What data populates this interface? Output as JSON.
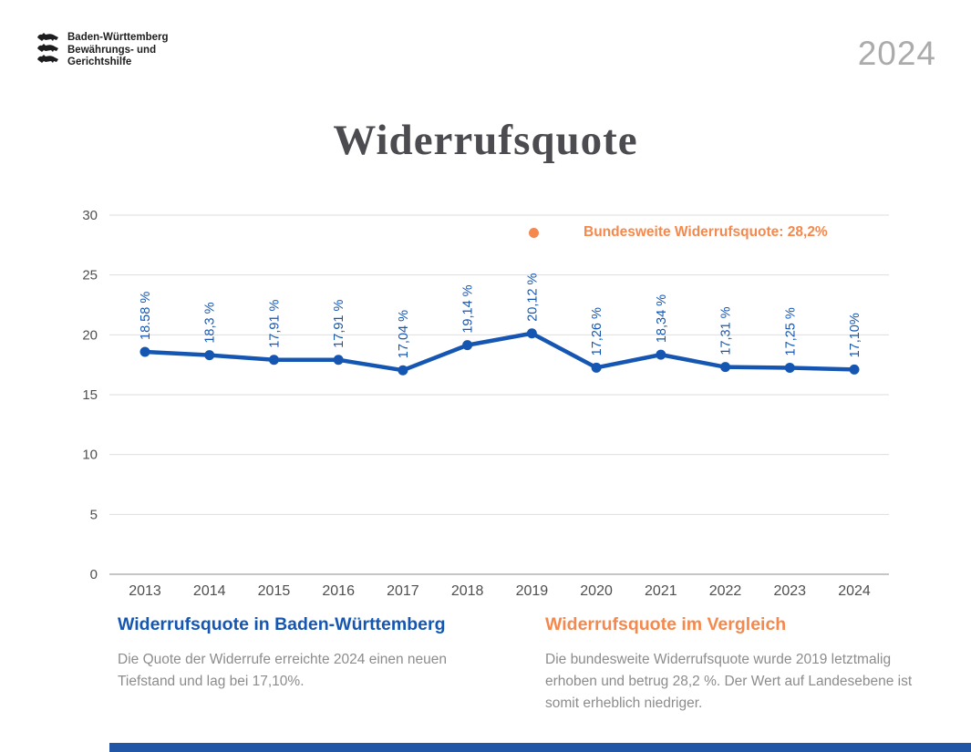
{
  "page": {
    "year_badge": "2024",
    "title": "Widerrufsquote"
  },
  "logo": {
    "lines": [
      "Baden-Württemberg",
      "Bewährungs- und",
      "Gerichtshilfe"
    ]
  },
  "chart_data": {
    "type": "line",
    "title": "Widerrufsquote",
    "categories": [
      "2013",
      "2014",
      "2015",
      "2016",
      "2017",
      "2018",
      "2019",
      "2020",
      "2021",
      "2022",
      "2023",
      "2024"
    ],
    "series": [
      {
        "name": "Widerrufsquote in Baden-Württemberg",
        "values": [
          18.58,
          18.3,
          17.91,
          17.91,
          17.04,
          19.14,
          20.12,
          17.26,
          18.34,
          17.31,
          17.25,
          17.1
        ],
        "point_labels": [
          "18.58 %",
          "18,3 %",
          "17,91 %",
          "17,91 %",
          "17,04 %",
          "19,14 %",
          "20,12 %",
          "17,26 %",
          "18,34 %",
          "17,31 %",
          "17,25 %",
          "17,10%"
        ],
        "color": "#1556b2"
      }
    ],
    "ylim": [
      0,
      30
    ],
    "yticks": [
      0,
      5,
      10,
      15,
      20,
      25,
      30
    ],
    "grid": true,
    "legend": {
      "label": "Bundesweite Widerrufsquote: 28,2%",
      "value": 28.2,
      "color": "#f5884d",
      "position": "top-right"
    }
  },
  "sections": {
    "left": {
      "heading": "Widerrufsquote in Baden-Württemberg",
      "body": "Die Quote der Widerrufe erreichte 2024 einen neuen Tiefstand und lag bei 17,10%."
    },
    "right": {
      "heading": "Widerrufsquote im Vergleich",
      "body": "Die bundesweite Widerrufsquote wurde 2019 letztmalig erhoben und betrug 28,2 %. Der Wert auf Landesebene ist somit erheblich niedriger."
    }
  },
  "colors": {
    "line_blue": "#1556b2",
    "accent_orange": "#f5884d",
    "body_gray": "#8c8c8c",
    "title_gray": "#4b4b50",
    "year_gray": "#ababab",
    "gridline": "#dedede",
    "axis_line": "#b3b3b3",
    "footer_bar_blue": "#2155a5"
  }
}
